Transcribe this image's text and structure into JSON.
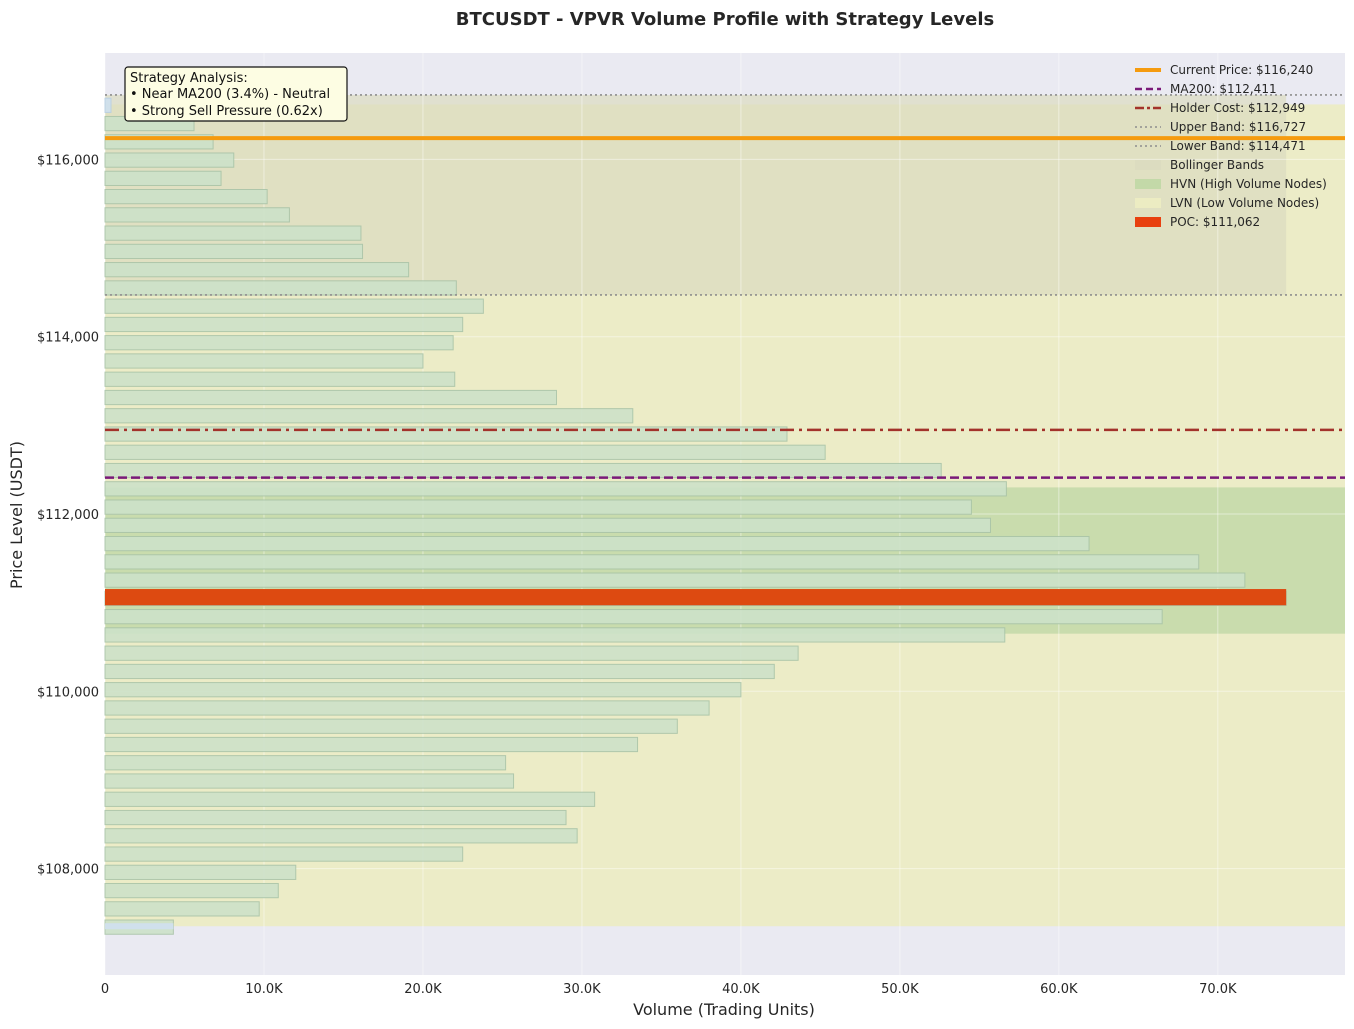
{
  "chart_data": {
    "type": "bar",
    "orientation": "horizontal",
    "title": "BTCUSDT - VPVR Volume Profile with Strategy Levels",
    "xlabel": "Volume (Trading Units)",
    "ylabel": "Price Level (USDT)",
    "xlim": [
      0,
      78000
    ],
    "ylim": [
      106800,
      117200
    ],
    "x_ticks": [
      {
        "value": 0,
        "label": "0"
      },
      {
        "value": 10000,
        "label": "10.0K"
      },
      {
        "value": 20000,
        "label": "20.0K"
      },
      {
        "value": 30000,
        "label": "30.0K"
      },
      {
        "value": 40000,
        "label": "40.0K"
      },
      {
        "value": 50000,
        "label": "50.0K"
      },
      {
        "value": 60000,
        "label": "60.0K"
      },
      {
        "value": 70000,
        "label": "70.0K"
      }
    ],
    "y_ticks": [
      {
        "value": 108000,
        "label": "$108,000"
      },
      {
        "value": 110000,
        "label": "$110,000"
      },
      {
        "value": 112000,
        "label": "$112,000"
      },
      {
        "value": 114000,
        "label": "$114,000"
      },
      {
        "value": 116000,
        "label": "$116,000"
      }
    ],
    "grid": true,
    "bin_size": 206,
    "bins": [
      {
        "price": 107340,
        "volume": 4300
      },
      {
        "price": 107546,
        "volume": 9700
      },
      {
        "price": 107752,
        "volume": 10900
      },
      {
        "price": 107958,
        "volume": 12000
      },
      {
        "price": 108164,
        "volume": 22500
      },
      {
        "price": 108370,
        "volume": 29700
      },
      {
        "price": 108576,
        "volume": 29000
      },
      {
        "price": 108782,
        "volume": 30800
      },
      {
        "price": 108988,
        "volume": 25700
      },
      {
        "price": 109194,
        "volume": 25200
      },
      {
        "price": 109400,
        "volume": 33500
      },
      {
        "price": 109606,
        "volume": 36000
      },
      {
        "price": 109812,
        "volume": 38000
      },
      {
        "price": 110018,
        "volume": 40000
      },
      {
        "price": 110224,
        "volume": 42100
      },
      {
        "price": 110430,
        "volume": 43600
      },
      {
        "price": 110636,
        "volume": 56600
      },
      {
        "price": 110842,
        "volume": 66500
      },
      {
        "price": 111048,
        "volume": 74300
      },
      {
        "price": 111254,
        "volume": 71700
      },
      {
        "price": 111460,
        "volume": 68800
      },
      {
        "price": 111666,
        "volume": 61900
      },
      {
        "price": 111872,
        "volume": 55700
      },
      {
        "price": 112078,
        "volume": 54500
      },
      {
        "price": 112284,
        "volume": 56700
      },
      {
        "price": 112490,
        "volume": 52600
      },
      {
        "price": 112696,
        "volume": 45300
      },
      {
        "price": 112902,
        "volume": 42900
      },
      {
        "price": 113108,
        "volume": 33200
      },
      {
        "price": 113314,
        "volume": 28400
      },
      {
        "price": 113520,
        "volume": 22000
      },
      {
        "price": 113726,
        "volume": 20000
      },
      {
        "price": 113932,
        "volume": 21900
      },
      {
        "price": 114138,
        "volume": 22500
      },
      {
        "price": 114344,
        "volume": 23800
      },
      {
        "price": 114550,
        "volume": 22100
      },
      {
        "price": 114756,
        "volume": 19100
      },
      {
        "price": 114962,
        "volume": 16200
      },
      {
        "price": 115168,
        "volume": 16100
      },
      {
        "price": 115374,
        "volume": 11600
      },
      {
        "price": 115580,
        "volume": 10200
      },
      {
        "price": 115786,
        "volume": 7300
      },
      {
        "price": 115992,
        "volume": 8100
      },
      {
        "price": 116198,
        "volume": 6800
      },
      {
        "price": 116404,
        "volume": 5600
      },
      {
        "price": 116610,
        "volume": 0
      }
    ],
    "poc": {
      "price": 111062,
      "volume": 74300
    },
    "levels": {
      "current_price": 116240,
      "ma200": 112411,
      "holder_cost": 112949,
      "upper_band": 116727,
      "lower_band": 114471
    },
    "bollinger_band": [
      114471,
      116727
    ],
    "bollinger_band_volume_extent": 74300,
    "hvn_zone": [
      110650,
      112300
    ],
    "lvn_zone": [
      107350,
      116620
    ],
    "legend_position": "top-right",
    "legend": [
      {
        "key": "current",
        "label": "Current Price: $116,240",
        "style": "solid-line",
        "color": "#f59b0f"
      },
      {
        "key": "ma200",
        "label": "MA200: $112,411",
        "style": "dashed-line",
        "color": "#7a1a79"
      },
      {
        "key": "holder",
        "label": "Holder Cost: $112,949",
        "style": "dashdot-line",
        "color": "#a3322b"
      },
      {
        "key": "upper",
        "label": "Upper Band: $116,727",
        "style": "dotted-line",
        "color": "#8e8e8e"
      },
      {
        "key": "lower",
        "label": "Lower Band: $114,471",
        "style": "dotted-line",
        "color": "#8e8e8e"
      },
      {
        "key": "bollinger",
        "label": "Bollinger Bands",
        "style": "patch",
        "color": "#dcdcc0"
      },
      {
        "key": "hvn",
        "label": "HVN (High Volume Nodes)",
        "style": "patch",
        "color": "#c3d9a8"
      },
      {
        "key": "lvn",
        "label": "LVN (Low Volume Nodes)",
        "style": "patch",
        "color": "#ececc2"
      },
      {
        "key": "poc",
        "label": "POC: $111,062",
        "style": "bar-patch",
        "color": "#e8400f"
      }
    ],
    "annotation": {
      "title": "Strategy Analysis:",
      "lines": [
        "• Near MA200 (3.4%) - Neutral",
        "• Strong Sell Pressure (0.62x)"
      ]
    },
    "colors": {
      "plot_background": "#eaeaf2",
      "bar_fill": "#cde2c9",
      "bar_edge": "#a9c4a8",
      "poc_fill": "#dd4a11",
      "current_price": "#f59b0f",
      "ma200": "#7a1a79",
      "holder_cost": "#a3322b",
      "bands": "#8e8e8e",
      "bollinger_fill": "#dcdcc0",
      "hvn_fill": "#c3d9a8",
      "lvn_fill": "#ececc2",
      "annotation_fill": "#fdfde3"
    }
  }
}
